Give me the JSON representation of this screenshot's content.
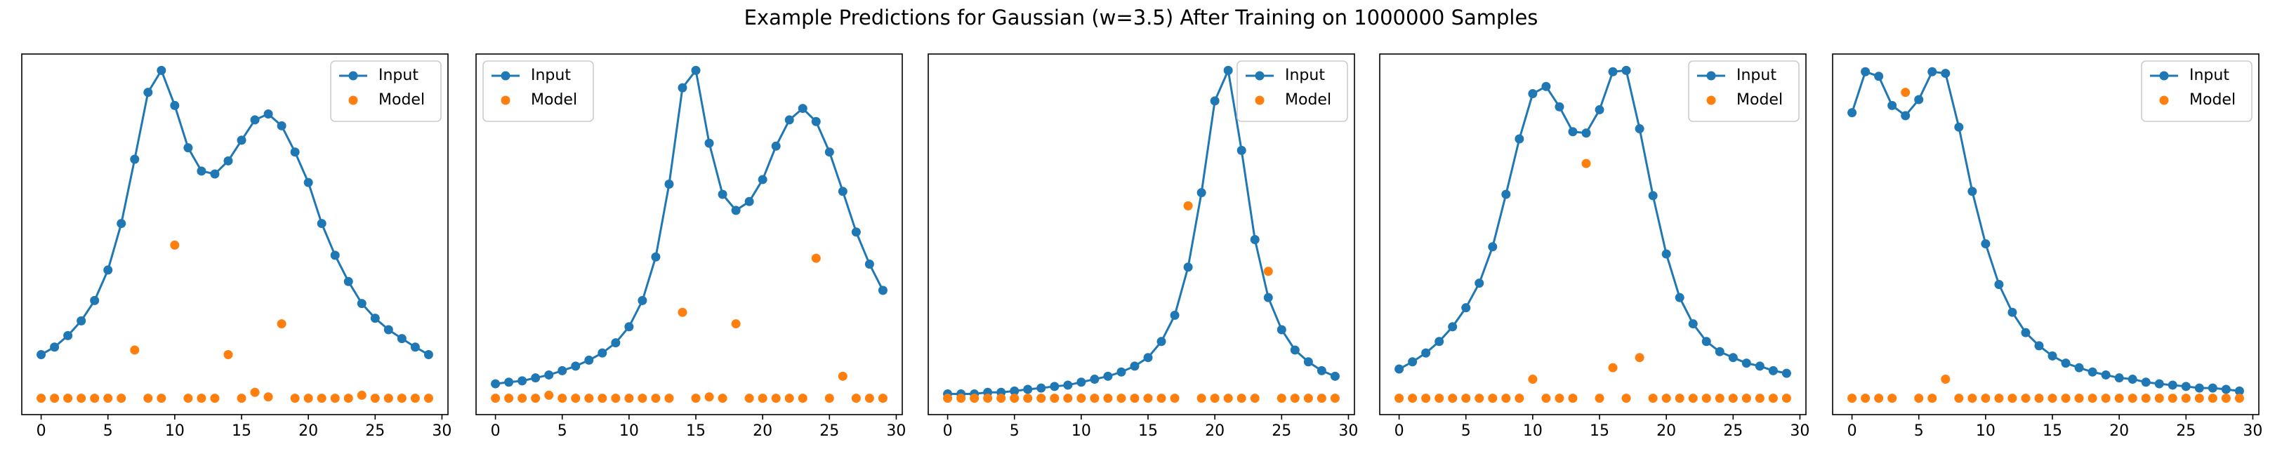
{
  "title": "Example Predictions for Gaussian (w=3.5) After Training on 1000000 Samples",
  "chart_data": [
    {
      "type": "line",
      "x": [
        0,
        1,
        2,
        3,
        4,
        5,
        6,
        7,
        8,
        9,
        10,
        11,
        12,
        13,
        14,
        15,
        16,
        17,
        18,
        19,
        20,
        21,
        22,
        23,
        24,
        25,
        26,
        27,
        28,
        29
      ],
      "xlim": [
        -1.45,
        30.45
      ],
      "xticks": [
        0,
        5,
        10,
        15,
        20,
        25,
        30
      ],
      "ylim": [
        -0.05,
        1.05
      ],
      "legend": "upper right",
      "series": [
        {
          "name": "Input",
          "color": "#1f77b4",
          "style": "line",
          "values": [
            0.133,
            0.156,
            0.191,
            0.236,
            0.298,
            0.391,
            0.533,
            0.729,
            0.933,
            1.0,
            0.893,
            0.764,
            0.693,
            0.684,
            0.724,
            0.787,
            0.849,
            0.867,
            0.831,
            0.751,
            0.658,
            0.533,
            0.436,
            0.356,
            0.289,
            0.244,
            0.209,
            0.182,
            0.156,
            0.133
          ]
        },
        {
          "name": "Model",
          "color": "#ff7f0e",
          "style": "marker",
          "values": [
            0,
            0,
            0,
            0,
            0,
            0,
            0,
            0.147,
            0,
            0,
            0.467,
            0,
            0,
            0,
            0.133,
            0,
            0.018,
            0.004,
            0.227,
            0,
            0,
            0,
            0,
            0,
            0.009,
            0,
            0,
            0,
            0,
            0
          ]
        }
      ]
    },
    {
      "type": "line",
      "x": [
        0,
        1,
        2,
        3,
        4,
        5,
        6,
        7,
        8,
        9,
        10,
        11,
        12,
        13,
        14,
        15,
        16,
        17,
        18,
        19,
        20,
        21,
        22,
        23,
        24,
        25,
        26,
        27,
        28,
        29
      ],
      "xlim": [
        -1.45,
        30.45
      ],
      "xticks": [
        0,
        5,
        10,
        15,
        20,
        25,
        30
      ],
      "ylim": [
        -0.05,
        1.05
      ],
      "legend": "upper left",
      "series": [
        {
          "name": "Input",
          "color": "#1f77b4",
          "style": "line",
          "values": [
            0.044,
            0.049,
            0.053,
            0.062,
            0.071,
            0.084,
            0.098,
            0.116,
            0.138,
            0.169,
            0.218,
            0.298,
            0.431,
            0.653,
            0.947,
            1.0,
            0.778,
            0.622,
            0.573,
            0.6,
            0.667,
            0.769,
            0.849,
            0.884,
            0.844,
            0.751,
            0.631,
            0.507,
            0.409,
            0.329
          ]
        },
        {
          "name": "Model",
          "color": "#ff7f0e",
          "style": "marker",
          "values": [
            0,
            0,
            0,
            0,
            0.009,
            0,
            0,
            0,
            0,
            0,
            0,
            0,
            0,
            0,
            0.262,
            0,
            0.004,
            0,
            0.227,
            0,
            0,
            0,
            0,
            0,
            0.427,
            0,
            0.067,
            0,
            0,
            0
          ]
        }
      ]
    },
    {
      "type": "line",
      "x": [
        0,
        1,
        2,
        3,
        4,
        5,
        6,
        7,
        8,
        9,
        10,
        11,
        12,
        13,
        14,
        15,
        16,
        17,
        18,
        19,
        20,
        21,
        22,
        23,
        24,
        25,
        26,
        27,
        28,
        29
      ],
      "xlim": [
        -1.45,
        30.45
      ],
      "xticks": [
        0,
        5,
        10,
        15,
        20,
        25,
        30
      ],
      "ylim": [
        -0.05,
        1.05
      ],
      "legend": "upper right",
      "series": [
        {
          "name": "Input",
          "color": "#1f77b4",
          "style": "line",
          "values": [
            0.013,
            0.013,
            0.013,
            0.018,
            0.018,
            0.022,
            0.027,
            0.031,
            0.036,
            0.04,
            0.049,
            0.058,
            0.067,
            0.08,
            0.098,
            0.124,
            0.173,
            0.253,
            0.4,
            0.627,
            0.907,
            1.0,
            0.756,
            0.484,
            0.307,
            0.209,
            0.147,
            0.111,
            0.084,
            0.067
          ]
        },
        {
          "name": "Model",
          "color": "#ff7f0e",
          "style": "marker",
          "values": [
            0,
            0,
            0,
            0,
            0,
            0,
            0,
            0,
            0,
            0,
            0,
            0,
            0,
            0,
            0,
            0,
            0,
            0,
            0.587,
            0,
            0,
            0,
            0,
            0,
            0.387,
            0,
            0,
            0,
            0,
            0
          ]
        }
      ]
    },
    {
      "type": "line",
      "x": [
        0,
        1,
        2,
        3,
        4,
        5,
        6,
        7,
        8,
        9,
        10,
        11,
        12,
        13,
        14,
        15,
        16,
        17,
        18,
        19,
        20,
        21,
        22,
        23,
        24,
        25,
        26,
        27,
        28,
        29
      ],
      "xlim": [
        -1.45,
        30.45
      ],
      "xticks": [
        0,
        5,
        10,
        15,
        20,
        25,
        30
      ],
      "ylim": [
        -0.05,
        1.05
      ],
      "legend": "upper right",
      "series": [
        {
          "name": "Input",
          "color": "#1f77b4",
          "style": "line",
          "values": [
            0.089,
            0.111,
            0.138,
            0.173,
            0.218,
            0.276,
            0.351,
            0.462,
            0.622,
            0.791,
            0.929,
            0.951,
            0.889,
            0.813,
            0.809,
            0.88,
            0.996,
            1.0,
            0.822,
            0.618,
            0.44,
            0.307,
            0.227,
            0.173,
            0.142,
            0.124,
            0.107,
            0.098,
            0.084,
            0.076
          ]
        },
        {
          "name": "Model",
          "color": "#ff7f0e",
          "style": "marker",
          "values": [
            0,
            0,
            0,
            0,
            0,
            0,
            0,
            0,
            0,
            0,
            0.058,
            0,
            0,
            0,
            0.716,
            0,
            0.093,
            0,
            0.124,
            0,
            0,
            0,
            0,
            0,
            0,
            0,
            0,
            0,
            0,
            0
          ]
        }
      ]
    },
    {
      "type": "line",
      "x": [
        0,
        1,
        2,
        3,
        4,
        5,
        6,
        7,
        8,
        9,
        10,
        11,
        12,
        13,
        14,
        15,
        16,
        17,
        18,
        19,
        20,
        21,
        22,
        23,
        24,
        25,
        26,
        27,
        28,
        29
      ],
      "xlim": [
        -1.45,
        30.45
      ],
      "xticks": [
        0,
        5,
        10,
        15,
        20,
        25,
        30
      ],
      "ylim": [
        -0.05,
        1.05
      ],
      "legend": "upper right",
      "series": [
        {
          "name": "Input",
          "color": "#1f77b4",
          "style": "line",
          "values": [
            0.871,
            0.996,
            0.982,
            0.893,
            0.862,
            0.911,
            0.996,
            0.991,
            0.827,
            0.631,
            0.471,
            0.347,
            0.262,
            0.2,
            0.16,
            0.129,
            0.107,
            0.093,
            0.08,
            0.071,
            0.062,
            0.058,
            0.049,
            0.044,
            0.04,
            0.036,
            0.031,
            0.031,
            0.027,
            0.022
          ]
        },
        {
          "name": "Model",
          "color": "#ff7f0e",
          "style": "marker",
          "values": [
            0,
            0,
            0,
            0,
            0.933,
            0,
            0,
            0.058,
            0,
            0,
            0,
            0,
            0,
            0,
            0,
            0,
            0,
            0,
            0,
            0,
            0,
            0,
            0,
            0,
            0,
            0,
            0,
            0,
            0,
            0
          ]
        }
      ]
    }
  ]
}
